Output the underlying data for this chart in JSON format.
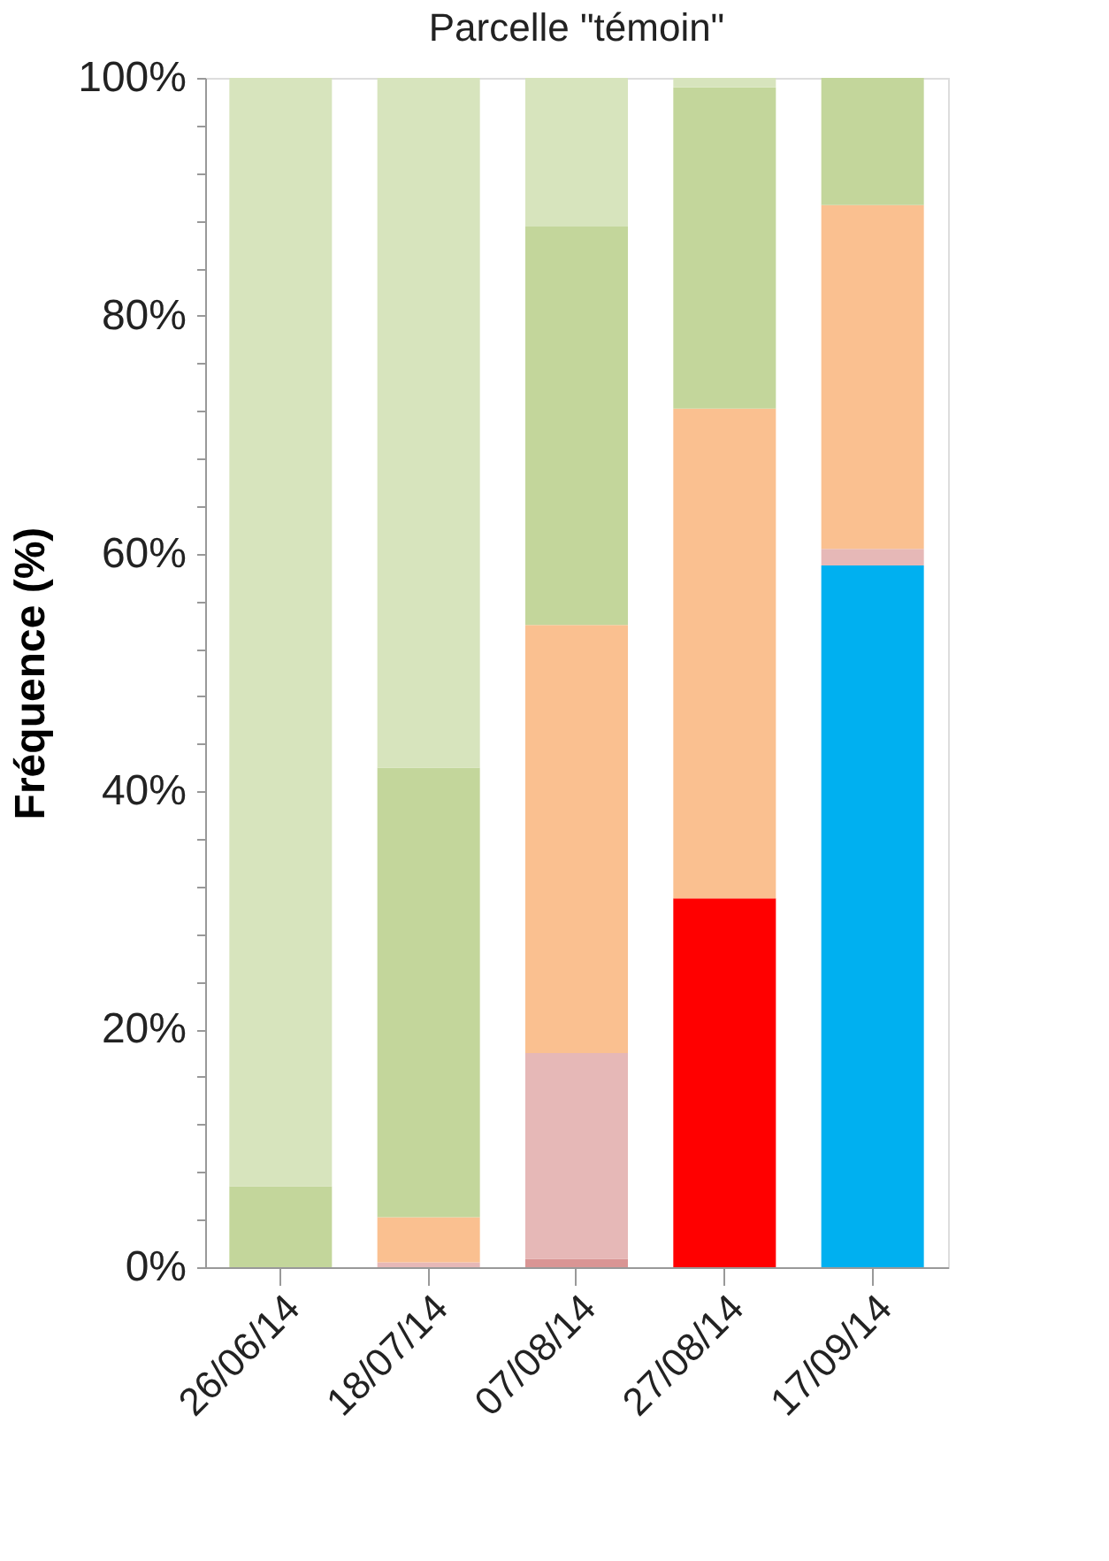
{
  "chart_data": {
    "type": "bar",
    "title": "Parcelle \"témoin\"",
    "ylabel": "Fréquence (%)",
    "categories": [
      "26/06/14",
      "18/07/14",
      "07/08/14",
      "27/08/14",
      "17/09/14"
    ],
    "stacked": true,
    "legend": false,
    "grid": false,
    "ylim": [
      0,
      100
    ],
    "yticks": [
      {
        "value": 0,
        "label": "0%"
      },
      {
        "value": 4,
        "label": null
      },
      {
        "value": 8,
        "label": null
      },
      {
        "value": 12,
        "label": null
      },
      {
        "value": 16,
        "label": null
      },
      {
        "value": 20,
        "label": "20%"
      },
      {
        "value": 24,
        "label": null
      },
      {
        "value": 28,
        "label": null
      },
      {
        "value": 32,
        "label": null
      },
      {
        "value": 36,
        "label": null
      },
      {
        "value": 40,
        "label": "40%"
      },
      {
        "value": 44,
        "label": null
      },
      {
        "value": 48,
        "label": null
      },
      {
        "value": 52,
        "label": null
      },
      {
        "value": 56,
        "label": null
      },
      {
        "value": 60,
        "label": "60%"
      },
      {
        "value": 64,
        "label": null
      },
      {
        "value": 68,
        "label": null
      },
      {
        "value": 72,
        "label": null
      },
      {
        "value": 76,
        "label": null
      },
      {
        "value": 80,
        "label": "80%"
      },
      {
        "value": 84,
        "label": null
      },
      {
        "value": 88,
        "label": null
      },
      {
        "value": 92,
        "label": null
      },
      {
        "value": 96,
        "label": null
      },
      {
        "value": 100,
        "label": "100%"
      }
    ],
    "series": [
      {
        "color": "#d99594",
        "values": [
          0,
          0,
          0.7,
          0,
          0
        ]
      },
      {
        "color": "#ff0000",
        "values": [
          0,
          0,
          0,
          31,
          0
        ]
      },
      {
        "color": "#00b0f0",
        "values": [
          0,
          0,
          0,
          0,
          59
        ]
      },
      {
        "color": "#e6b8b7",
        "values": [
          0,
          0.4,
          17.3,
          0,
          1.4
        ]
      },
      {
        "color": "#fac090",
        "values": [
          0,
          3.8,
          36,
          41.2,
          28.9
        ]
      },
      {
        "color": "#c3d69b",
        "values": [
          6.8,
          37.8,
          33.5,
          27,
          10.7
        ]
      },
      {
        "color": "#d7e4bd",
        "values": [
          93.2,
          58,
          12.5,
          0.8,
          0
        ]
      }
    ]
  }
}
